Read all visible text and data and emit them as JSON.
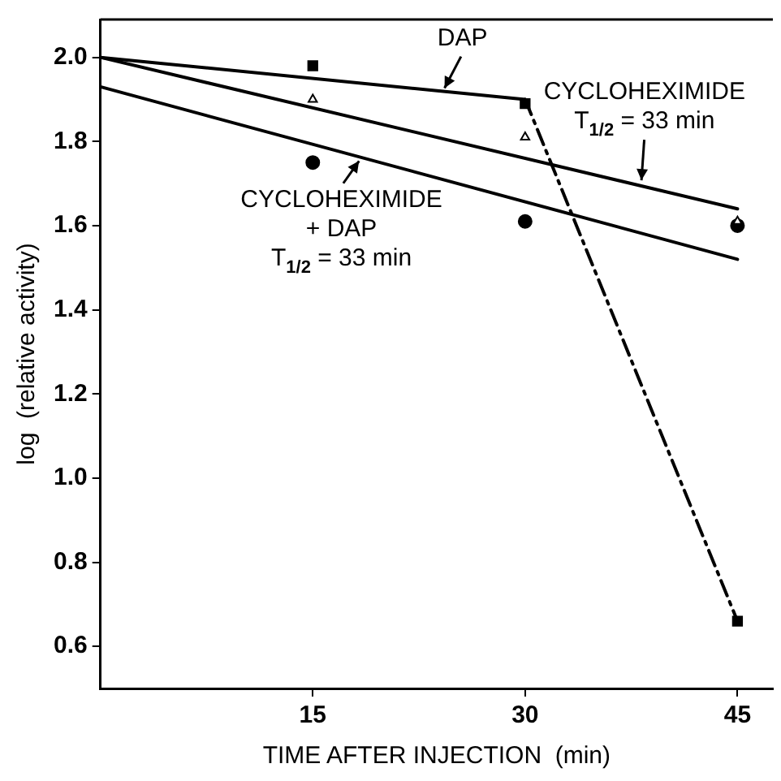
{
  "chart_data": {
    "type": "scatter",
    "xlabel": "TIME AFTER INJECTION  (min)",
    "ylabel": "log  (relative activity)",
    "xlim": [
      0,
      47.5
    ],
    "xticks": [
      15,
      30,
      45
    ],
    "ylim": [
      0.5,
      2.09
    ],
    "yticks": [
      {
        "value": 0.6,
        "label": "0.6"
      },
      {
        "value": 0.8,
        "label": "0.8"
      },
      {
        "value": 1,
        "label": "1.0"
      },
      {
        "value": 1.2,
        "label": "1.2"
      },
      {
        "value": 1.4,
        "label": "1.4"
      },
      {
        "value": 1.6,
        "label": "1.6"
      },
      {
        "value": 1.8,
        "label": "1.8"
      },
      {
        "value": 2,
        "label": "2.0"
      }
    ],
    "grid": false,
    "legend": false,
    "series": [
      {
        "type": "scatter",
        "marker": "square",
        "color": "#000000",
        "x": [
          15,
          30,
          45
        ],
        "values": [
          1.98,
          1.89,
          0.66
        ]
      },
      {
        "type": "scatter",
        "marker": "triangle",
        "color": "#000000",
        "x": [
          15,
          30,
          45
        ],
        "values": [
          1.9,
          1.81,
          1.61
        ]
      },
      {
        "type": "scatter",
        "marker": "circle",
        "color": "#000000",
        "x": [
          15,
          30,
          45
        ],
        "values": [
          1.75,
          1.61,
          1.6
        ]
      },
      {
        "type": "line",
        "marker": "none",
        "line_style": "solid",
        "color": "#000000",
        "x": [
          0,
          30
        ],
        "values": [
          2.0,
          1.9
        ]
      },
      {
        "type": "line",
        "marker": "none",
        "line_style": "dashed",
        "color": "#000000",
        "x": [
          30,
          45
        ],
        "values": [
          1.9,
          0.66
        ]
      },
      {
        "type": "line",
        "marker": "none",
        "line_style": "solid",
        "color": "#000000",
        "x": [
          0,
          45
        ],
        "values": [
          2.0,
          1.64
        ]
      },
      {
        "type": "line",
        "marker": "none",
        "line_style": "solid",
        "color": "#000000",
        "x": [
          0,
          45
        ],
        "values": [
          1.93,
          1.52
        ]
      }
    ],
    "annotations": [
      {
        "text": "DAP",
        "x": 24.2,
        "y": 1.92
      },
      {
        "text": "CYCLOHEXIMIDE\nT$_{1/2}$ = 33 min",
        "x": 38.2,
        "y": 1.7
      },
      {
        "text": "CYCLOHEXIMIDE\n+ DAP\nT$_{1/2}$ = 33 min",
        "x": 18.4,
        "y": 1.76
      }
    ]
  }
}
